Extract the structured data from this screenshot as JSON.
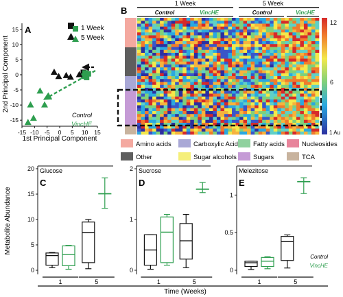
{
  "colors": {
    "black": "#111111",
    "green": "#2e9e4f"
  },
  "panel_a": {
    "letter": "A",
    "xlabel": "1st Principal Component",
    "ylabel": "2nd Principal Component",
    "legend": [
      "1 Week",
      "5 Week"
    ],
    "group_labels": [
      "Control",
      "VincHE"
    ]
  },
  "panel_b": {
    "letter": "B",
    "week_labels": [
      "1 Week",
      "5 Week"
    ],
    "group_labels": [
      "Control",
      "VincHE",
      "Control",
      "VincHE"
    ],
    "scale_max": "12",
    "scale_mid": "6",
    "scale_min": "1 Au",
    "legend": [
      {
        "label": "Amino acids",
        "color": "#f4a9a0"
      },
      {
        "label": "Carboxylic Acids",
        "color": "#a9a8d6"
      },
      {
        "label": "Fatty acids",
        "color": "#8fd19e"
      },
      {
        "label": "Nucleosides",
        "color": "#e8849b"
      },
      {
        "label": "Other",
        "color": "#5e5e5e"
      },
      {
        "label": "Sugar alcohols",
        "color": "#f5ef7a"
      },
      {
        "label": "Sugars",
        "color": "#c59bd6"
      },
      {
        "label": "TCA",
        "color": "#c8b39e"
      }
    ]
  },
  "bottom": {
    "ylabel": "Metabolite Abundance",
    "xlabel": "Time (Weeks)",
    "legend": [
      "Control",
      "VincHE"
    ],
    "panels": [
      {
        "letter": "C",
        "title": "Glucose"
      },
      {
        "letter": "D",
        "title": "Sucrose"
      },
      {
        "letter": "E",
        "title": "Melezitose"
      }
    ]
  },
  "chart_data": [
    {
      "type": "scatter",
      "panel": "A",
      "xlabel": "1st Principal Component",
      "ylabel": "2nd Principal Component",
      "xlim": [
        -15,
        15
      ],
      "ylim": [
        -17,
        17
      ],
      "xticks": [
        -15,
        -10,
        -5,
        0,
        5,
        10,
        15
      ],
      "yticks": [
        -15,
        -10,
        -5,
        0,
        5,
        10,
        15
      ],
      "series": [
        {
          "name": "1 Week",
          "group": "Control",
          "marker": "square",
          "points": [
            [
              9.4,
              0.8
            ],
            [
              10.3,
              -0.3
            ],
            [
              10.6,
              0.3
            ]
          ]
        },
        {
          "name": "1 Week",
          "group": "VincHE",
          "marker": "square",
          "points": [
            [
              9.6,
              -0.5
            ],
            [
              10.1,
              0.6
            ],
            [
              10.7,
              -0.9
            ],
            [
              11.4,
              0.3
            ]
          ]
        },
        {
          "name": "5 Week",
          "group": "Control",
          "marker": "triangle",
          "points": [
            [
              -2.2,
              0.9
            ],
            [
              -0.4,
              -0.5
            ],
            [
              2.6,
              -0.2
            ],
            [
              4.3,
              -0.7
            ],
            [
              7.8,
              0.1
            ]
          ]
        },
        {
          "name": "5 Week",
          "group": "VincHE",
          "marker": "triangle",
          "points": [
            [
              -11.6,
              -9.9
            ],
            [
              -10.4,
              -14.3
            ],
            [
              -7.8,
              -5.3
            ],
            [
              -6.0,
              -9.9
            ],
            [
              -12.6,
              -15.7
            ]
          ]
        }
      ]
    },
    {
      "type": "heatmap",
      "panel": "B",
      "columns": [
        "1 Week Control",
        "1 Week VincHE",
        "5 Week Control",
        "5 Week VincHE"
      ],
      "row_categories": [
        "Amino acids",
        "Other",
        "Carboxylic Acids",
        "Sugars",
        "TCA"
      ],
      "color_scale": [
        1,
        12
      ],
      "colorbar_labels": [
        "12",
        "6",
        "1 Au"
      ]
    },
    {
      "type": "box",
      "panel": "C",
      "title": "Glucose",
      "categories": [
        "1",
        "5"
      ],
      "ylim": [
        0,
        20
      ],
      "yticks": [
        0,
        5,
        10,
        15,
        20
      ],
      "series": [
        {
          "name": "Control",
          "boxes": [
            {
              "min": 0.5,
              "q1": 1.0,
              "median": 2.9,
              "q3": 3.4,
              "max": 3.5
            },
            {
              "min": 0.3,
              "q1": 1.5,
              "median": 7.4,
              "q3": 9.5,
              "max": 10.0
            }
          ]
        },
        {
          "name": "VincHE",
          "boxes": [
            {
              "min": 0.2,
              "q1": 0.9,
              "median": 3.1,
              "q3": 4.8,
              "max": 4.9
            },
            {
              "min": 12.2,
              "q1": 15.1,
              "median": 15.1,
              "q3": 15.1,
              "max": 18.2
            }
          ]
        }
      ]
    },
    {
      "type": "box",
      "panel": "D",
      "title": "Sucrose",
      "categories": [
        "1",
        "5"
      ],
      "ylim": [
        0,
        2
      ],
      "yticks": [
        0,
        1,
        2
      ],
      "series": [
        {
          "name": "Control",
          "boxes": [
            {
              "min": 0.02,
              "q1": 0.1,
              "median": 0.4,
              "q3": 0.7,
              "max": 0.7
            },
            {
              "min": 0.05,
              "q1": 0.22,
              "median": 0.58,
              "q3": 0.92,
              "max": 1.1
            }
          ]
        },
        {
          "name": "VincHE",
          "boxes": [
            {
              "min": 0.1,
              "q1": 0.15,
              "median": 0.75,
              "q3": 1.05,
              "max": 1.1
            },
            {
              "min": 1.53,
              "q1": 1.6,
              "median": 1.6,
              "q3": 1.6,
              "max": 1.73
            }
          ]
        }
      ]
    },
    {
      "type": "box",
      "panel": "E",
      "title": "Melezitose",
      "categories": [
        "1",
        "5"
      ],
      "ylim": [
        0,
        1.35
      ],
      "yticks": [
        0.0,
        0.5,
        1.0
      ],
      "series": [
        {
          "name": "Control",
          "boxes": [
            {
              "min": 0.01,
              "q1": 0.05,
              "median": 0.1,
              "q3": 0.12,
              "max": 0.12
            },
            {
              "min": 0.03,
              "q1": 0.13,
              "median": 0.38,
              "q3": 0.45,
              "max": 0.47
            }
          ]
        },
        {
          "name": "VincHE",
          "boxes": [
            {
              "min": 0.02,
              "q1": 0.05,
              "median": 0.12,
              "q3": 0.17,
              "max": 0.18
            },
            {
              "min": 1.02,
              "q1": 1.18,
              "median": 1.18,
              "q3": 1.18,
              "max": 1.23
            }
          ]
        }
      ]
    }
  ]
}
